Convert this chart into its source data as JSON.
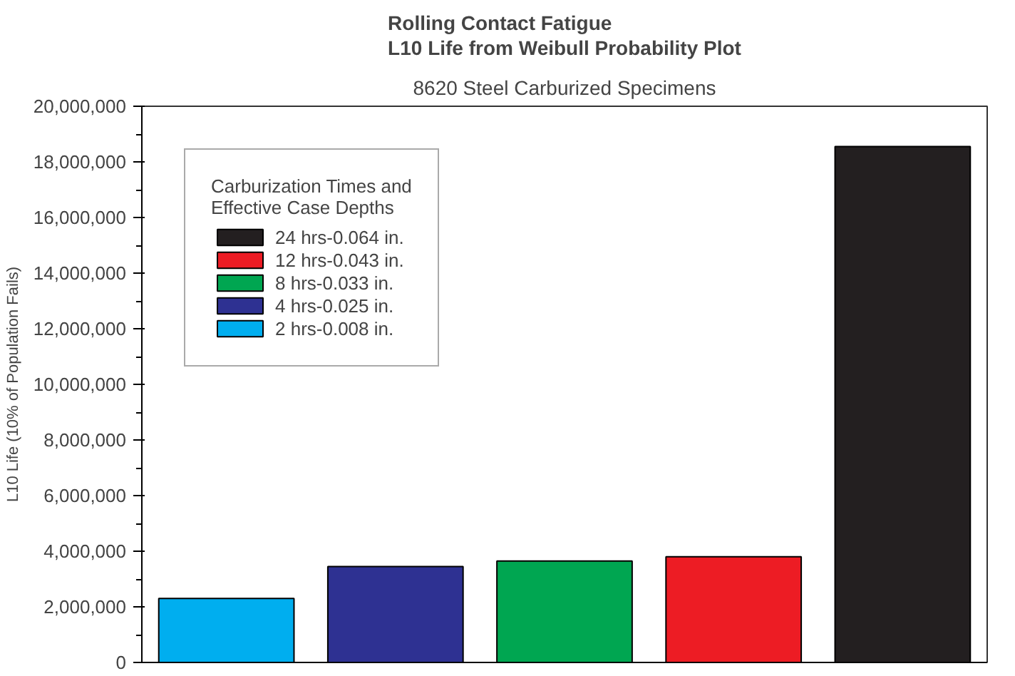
{
  "chart_data": {
    "type": "bar",
    "title": "Rolling Contact Fatigue\nL10 Life from Weibull Probability Plot",
    "subtitle": "8620 Steel Carburized Specimens",
    "ylabel": "L10 Life (10% of Population Fails)",
    "legend_title": "Carburization Times and\nEffective Case Depths",
    "categories": [
      null,
      null,
      null,
      null,
      null
    ],
    "series": [
      {
        "name": "24 hrs-0.064 in.",
        "color": "#231f20",
        "values": [
          null,
          null,
          null,
          null,
          18550000
        ]
      },
      {
        "name": "12 hrs-0.043 in.",
        "color": "#ed1c24",
        "values": [
          null,
          null,
          null,
          3800000,
          null
        ]
      },
      {
        "name": "8 hrs-0.033 in.",
        "color": "#00a651",
        "values": [
          null,
          null,
          3650000,
          null,
          null
        ]
      },
      {
        "name": "4 hrs-0.025 in.",
        "color": "#2e3192",
        "values": [
          null,
          3450000,
          null,
          null,
          null
        ]
      },
      {
        "name": "2 hrs-0.008 in.",
        "color": "#00aeef",
        "values": [
          2300000,
          null,
          null,
          null,
          null
        ]
      }
    ],
    "ylim": [
      0,
      20000000
    ],
    "yticks": [
      {
        "value": 0,
        "label": "0"
      },
      {
        "value": 2000000,
        "label": "2,000,000"
      },
      {
        "value": 4000000,
        "label": "4,000,000"
      },
      {
        "value": 6000000,
        "label": "6,000,000"
      },
      {
        "value": 8000000,
        "label": "8,000,000"
      },
      {
        "value": 10000000,
        "label": "10,000,000"
      },
      {
        "value": 12000000,
        "label": "12,000,000"
      },
      {
        "value": 14000000,
        "label": "14,000,000"
      },
      {
        "value": 16000000,
        "label": "16,000,000"
      },
      {
        "value": 18000000,
        "label": "18,000,000"
      },
      {
        "value": 20000000,
        "label": "20,000,000"
      }
    ],
    "legend": "top left",
    "grid": false,
    "tick_labels": "y"
  }
}
